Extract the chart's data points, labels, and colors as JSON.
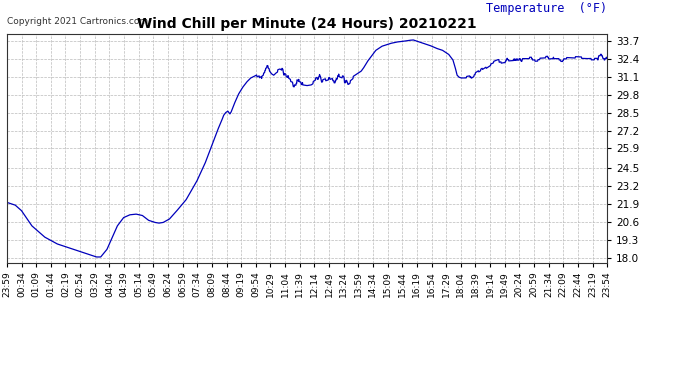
{
  "title": "Wind Chill per Minute (24 Hours) 20210221",
  "ylabel": "Temperature  (°F)",
  "copyright_text": "Copyright 2021 Cartronics.com",
  "line_color": "#0000bb",
  "background_color": "#ffffff",
  "grid_color": "#aaaaaa",
  "ylabel_color": "#0000bb",
  "yticks": [
    18.0,
    19.3,
    20.6,
    21.9,
    23.2,
    24.5,
    25.9,
    27.2,
    28.5,
    29.8,
    31.1,
    32.4,
    33.7
  ],
  "ylim": [
    17.65,
    34.2
  ],
  "xtick_labels": [
    "23:59",
    "00:34",
    "01:09",
    "01:44",
    "02:19",
    "02:54",
    "03:29",
    "04:04",
    "04:39",
    "05:14",
    "05:49",
    "06:24",
    "06:59",
    "07:34",
    "08:09",
    "08:44",
    "09:19",
    "09:54",
    "10:29",
    "11:04",
    "11:39",
    "12:14",
    "12:49",
    "13:24",
    "13:59",
    "14:34",
    "15:09",
    "15:44",
    "16:19",
    "16:54",
    "17:29",
    "18:04",
    "18:39",
    "19:14",
    "19:49",
    "20:24",
    "20:59",
    "21:34",
    "22:09",
    "22:44",
    "23:19",
    "23:54"
  ],
  "control_points": [
    [
      0,
      22.0
    ],
    [
      20,
      21.8
    ],
    [
      35,
      21.4
    ],
    [
      60,
      20.3
    ],
    [
      90,
      19.5
    ],
    [
      120,
      19.0
    ],
    [
      155,
      18.65
    ],
    [
      200,
      18.2
    ],
    [
      215,
      18.05
    ],
    [
      225,
      18.05
    ],
    [
      240,
      18.6
    ],
    [
      265,
      20.3
    ],
    [
      280,
      20.9
    ],
    [
      295,
      21.1
    ],
    [
      310,
      21.15
    ],
    [
      325,
      21.05
    ],
    [
      340,
      20.7
    ],
    [
      355,
      20.55
    ],
    [
      365,
      20.5
    ],
    [
      375,
      20.55
    ],
    [
      390,
      20.8
    ],
    [
      405,
      21.3
    ],
    [
      430,
      22.2
    ],
    [
      455,
      23.5
    ],
    [
      475,
      24.8
    ],
    [
      490,
      26.0
    ],
    [
      505,
      27.2
    ],
    [
      515,
      27.9
    ],
    [
      520,
      28.3
    ],
    [
      525,
      28.5
    ],
    [
      530,
      28.6
    ],
    [
      535,
      28.4
    ],
    [
      538,
      28.55
    ],
    [
      545,
      29.1
    ],
    [
      555,
      29.8
    ],
    [
      565,
      30.3
    ],
    [
      575,
      30.7
    ],
    [
      585,
      31.0
    ],
    [
      592,
      31.1
    ],
    [
      598,
      31.2
    ],
    [
      605,
      31.3
    ],
    [
      610,
      31.4
    ],
    [
      615,
      31.5
    ],
    [
      620,
      31.55
    ],
    [
      625,
      31.6
    ],
    [
      630,
      31.5
    ],
    [
      635,
      31.3
    ],
    [
      640,
      31.2
    ],
    [
      645,
      31.35
    ],
    [
      650,
      31.45
    ],
    [
      655,
      31.5
    ],
    [
      660,
      31.4
    ],
    [
      665,
      31.2
    ],
    [
      670,
      31.1
    ],
    [
      675,
      31.0
    ],
    [
      680,
      30.9
    ],
    [
      685,
      30.85
    ],
    [
      690,
      30.8
    ],
    [
      695,
      30.75
    ],
    [
      700,
      30.6
    ],
    [
      705,
      30.55
    ],
    [
      710,
      30.5
    ],
    [
      720,
      30.45
    ],
    [
      730,
      30.5
    ],
    [
      740,
      30.7
    ],
    [
      750,
      30.8
    ],
    [
      760,
      30.9
    ],
    [
      770,
      31.0
    ],
    [
      780,
      31.1
    ],
    [
      790,
      31.1
    ],
    [
      800,
      30.9
    ],
    [
      810,
      30.8
    ],
    [
      820,
      30.85
    ],
    [
      830,
      31.1
    ],
    [
      840,
      31.3
    ],
    [
      850,
      31.5
    ],
    [
      855,
      31.7
    ],
    [
      860,
      31.95
    ],
    [
      865,
      32.2
    ],
    [
      870,
      32.4
    ],
    [
      875,
      32.6
    ],
    [
      885,
      33.0
    ],
    [
      900,
      33.3
    ],
    [
      920,
      33.5
    ],
    [
      935,
      33.6
    ],
    [
      950,
      33.65
    ],
    [
      960,
      33.7
    ],
    [
      965,
      33.72
    ],
    [
      970,
      33.74
    ],
    [
      975,
      33.75
    ],
    [
      980,
      33.7
    ],
    [
      990,
      33.6
    ],
    [
      1000,
      33.5
    ],
    [
      1015,
      33.35
    ],
    [
      1030,
      33.15
    ],
    [
      1045,
      33.0
    ],
    [
      1060,
      32.7
    ],
    [
      1070,
      32.3
    ],
    [
      1075,
      31.8
    ],
    [
      1080,
      31.2
    ],
    [
      1085,
      31.05
    ],
    [
      1090,
      31.0
    ],
    [
      1100,
      31.0
    ],
    [
      1110,
      31.05
    ],
    [
      1115,
      31.1
    ],
    [
      1120,
      31.2
    ],
    [
      1130,
      31.4
    ],
    [
      1140,
      31.6
    ],
    [
      1150,
      31.8
    ],
    [
      1160,
      32.0
    ],
    [
      1175,
      32.2
    ],
    [
      1190,
      32.3
    ],
    [
      1210,
      32.35
    ],
    [
      1230,
      32.4
    ],
    [
      1260,
      32.4
    ],
    [
      1290,
      32.45
    ],
    [
      1310,
      32.5
    ],
    [
      1330,
      32.5
    ],
    [
      1360,
      32.45
    ],
    [
      1390,
      32.4
    ],
    [
      1410,
      32.42
    ],
    [
      1440,
      32.4
    ]
  ]
}
